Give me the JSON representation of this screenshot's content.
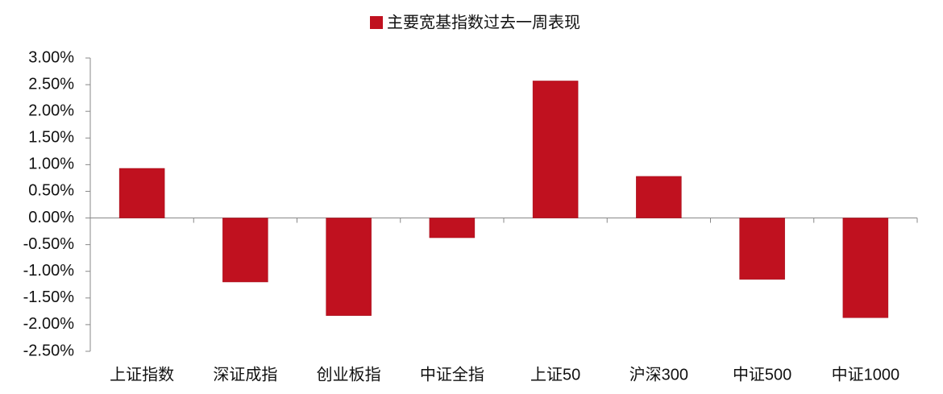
{
  "chart_data": {
    "type": "bar",
    "categories": [
      "上证指数",
      "深证成指",
      "创业板指",
      "中证全指",
      "上证50",
      "沪深300",
      "中证500",
      "中证1000"
    ],
    "series": [
      {
        "name": "主要宽基指数过去一周表现",
        "color": "#c0111f",
        "values": [
          0.93,
          -1.2,
          -1.83,
          -0.37,
          2.57,
          0.78,
          -1.15,
          -1.87
        ]
      }
    ],
    "ylim": [
      -2.5,
      3.0
    ],
    "yticks": [
      {
        "value": 3,
        "label": "3.00%"
      },
      {
        "value": 2.5,
        "label": "2.50%"
      },
      {
        "value": 2,
        "label": "2.00%"
      },
      {
        "value": 1.5,
        "label": "1.50%"
      },
      {
        "value": 1,
        "label": "1.00%"
      },
      {
        "value": 0.5,
        "label": "0.50%"
      },
      {
        "value": 0,
        "label": "0.00%"
      },
      {
        "value": -0.5,
        "label": "-0.50%"
      },
      {
        "value": -1,
        "label": "-1.00%"
      },
      {
        "value": -1.5,
        "label": "-1.50%"
      },
      {
        "value": -2,
        "label": "-2.00%"
      },
      {
        "value": -2.5,
        "label": "-2.50%"
      }
    ],
    "legend": "top",
    "grid": false
  }
}
